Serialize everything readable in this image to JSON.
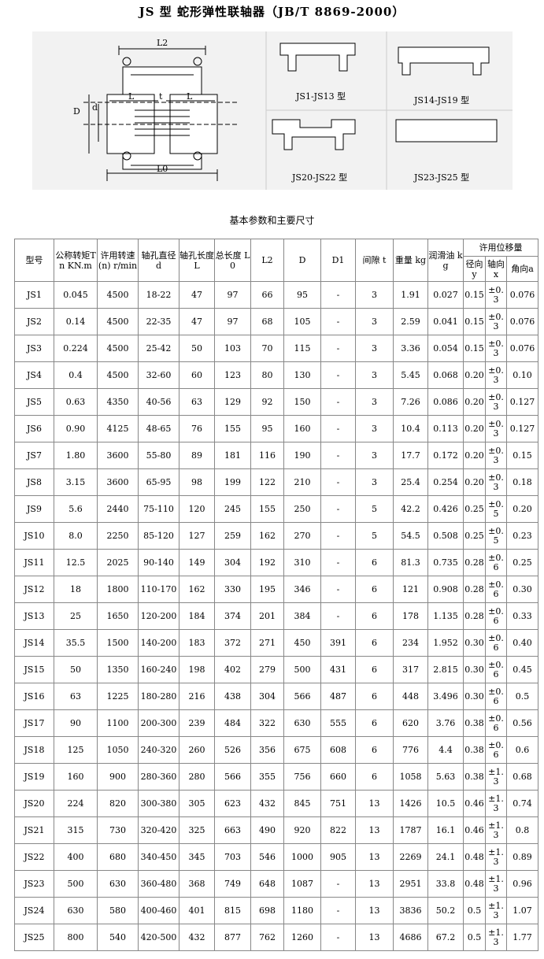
{
  "header": {
    "title": "JS 型 蛇形弹性联轴器（JB/T 8869-2000）"
  },
  "diagram": {
    "labels": [
      "L2",
      "D",
      "d",
      "L",
      "t",
      "L",
      "L0"
    ],
    "variants": [
      "JS1-JS13 型",
      "JS14-JS19 型",
      "JS20-JS22 型",
      "JS23-JS25 型"
    ]
  },
  "table": {
    "caption": "基本参数和主要尺寸",
    "columns": [
      "型号",
      "公称转矩Tn KN.m",
      "许用转速(n) r/min",
      "轴孔直径 d",
      "轴孔长度 L",
      "总长度 L0",
      "L2",
      "D",
      "D1",
      "间隙 t",
      "重量 kg",
      "润滑油 kg"
    ],
    "group_header": "许用位移量",
    "sub_columns": [
      "径向 y",
      "轴向x",
      "角向a"
    ],
    "rows": [
      [
        "JS1",
        "0.045",
        "4500",
        "18-22",
        "47",
        "97",
        "66",
        "95",
        "-",
        "3",
        "1.91",
        "0.027",
        "0.15",
        "±0.3",
        "0.076"
      ],
      [
        "JS2",
        "0.14",
        "4500",
        "22-35",
        "47",
        "97",
        "68",
        "105",
        "-",
        "3",
        "2.59",
        "0.041",
        "0.15",
        "±0.3",
        "0.076"
      ],
      [
        "JS3",
        "0.224",
        "4500",
        "25-42",
        "50",
        "103",
        "70",
        "115",
        "-",
        "3",
        "3.36",
        "0.054",
        "0.15",
        "±0.3",
        "0.076"
      ],
      [
        "JS4",
        "0.4",
        "4500",
        "32-60",
        "60",
        "123",
        "80",
        "130",
        "-",
        "3",
        "5.45",
        "0.068",
        "0.20",
        "±0.3",
        "0.10"
      ],
      [
        "JS5",
        "0.63",
        "4350",
        "40-56",
        "63",
        "129",
        "92",
        "150",
        "-",
        "3",
        "7.26",
        "0.086",
        "0.20",
        "±0.3",
        "0.127"
      ],
      [
        "JS6",
        "0.90",
        "4125",
        "48-65",
        "76",
        "155",
        "95",
        "160",
        "-",
        "3",
        "10.4",
        "0.113",
        "0.20",
        "±0.3",
        "0.127"
      ],
      [
        "JS7",
        "1.80",
        "3600",
        "55-80",
        "89",
        "181",
        "116",
        "190",
        "-",
        "3",
        "17.7",
        "0.172",
        "0.20",
        "±0.3",
        "0.15"
      ],
      [
        "JS8",
        "3.15",
        "3600",
        "65-95",
        "98",
        "199",
        "122",
        "210",
        "-",
        "3",
        "25.4",
        "0.254",
        "0.20",
        "±0.3",
        "0.18"
      ],
      [
        "JS9",
        "5.6",
        "2440",
        "75-110",
        "120",
        "245",
        "155",
        "250",
        "-",
        "5",
        "42.2",
        "0.426",
        "0.25",
        "±0.5",
        "0.20"
      ],
      [
        "JS10",
        "8.0",
        "2250",
        "85-120",
        "127",
        "259",
        "162",
        "270",
        "-",
        "5",
        "54.5",
        "0.508",
        "0.25",
        "±0.5",
        "0.23"
      ],
      [
        "JS11",
        "12.5",
        "2025",
        "90-140",
        "149",
        "304",
        "192",
        "310",
        "-",
        "6",
        "81.3",
        "0.735",
        "0.28",
        "±0.6",
        "0.25"
      ],
      [
        "JS12",
        "18",
        "1800",
        "110-170",
        "162",
        "330",
        "195",
        "346",
        "-",
        "6",
        "121",
        "0.908",
        "0.28",
        "±0.6",
        "0.30"
      ],
      [
        "JS13",
        "25",
        "1650",
        "120-200",
        "184",
        "374",
        "201",
        "384",
        "-",
        "6",
        "178",
        "1.135",
        "0.28",
        "±0.6",
        "0.33"
      ],
      [
        "JS14",
        "35.5",
        "1500",
        "140-200",
        "183",
        "372",
        "271",
        "450",
        "391",
        "6",
        "234",
        "1.952",
        "0.30",
        "±0.6",
        "0.40"
      ],
      [
        "JS15",
        "50",
        "1350",
        "160-240",
        "198",
        "402",
        "279",
        "500",
        "431",
        "6",
        "317",
        "2.815",
        "0.30",
        "±0.6",
        "0.45"
      ],
      [
        "JS16",
        "63",
        "1225",
        "180-280",
        "216",
        "438",
        "304",
        "566",
        "487",
        "6",
        "448",
        "3.496",
        "0.30",
        "±0.6",
        "0.5"
      ],
      [
        "JS17",
        "90",
        "1100",
        "200-300",
        "239",
        "484",
        "322",
        "630",
        "555",
        "6",
        "620",
        "3.76",
        "0.38",
        "±0.6",
        "0.56"
      ],
      [
        "JS18",
        "125",
        "1050",
        "240-320",
        "260",
        "526",
        "356",
        "675",
        "608",
        "6",
        "776",
        "4.4",
        "0.38",
        "±0.6",
        "0.6"
      ],
      [
        "JS19",
        "160",
        "900",
        "280-360",
        "280",
        "566",
        "355",
        "756",
        "660",
        "6",
        "1058",
        "5.63",
        "0.38",
        "±1.3",
        "0.68"
      ],
      [
        "JS20",
        "224",
        "820",
        "300-380",
        "305",
        "623",
        "432",
        "845",
        "751",
        "13",
        "1426",
        "10.5",
        "0.46",
        "±1.3",
        "0.74"
      ],
      [
        "JS21",
        "315",
        "730",
        "320-420",
        "325",
        "663",
        "490",
        "920",
        "822",
        "13",
        "1787",
        "16.1",
        "0.46",
        "±1.3",
        "0.8"
      ],
      [
        "JS22",
        "400",
        "680",
        "340-450",
        "345",
        "703",
        "546",
        "1000",
        "905",
        "13",
        "2269",
        "24.1",
        "0.48",
        "±1.3",
        "0.89"
      ],
      [
        "JS23",
        "500",
        "630",
        "360-480",
        "368",
        "749",
        "648",
        "1087",
        "-",
        "13",
        "2951",
        "33.8",
        "0.48",
        "±1.3",
        "0.96"
      ],
      [
        "JS24",
        "630",
        "580",
        "400-460",
        "401",
        "815",
        "698",
        "1180",
        "-",
        "13",
        "3836",
        "50.2",
        "0.5",
        "±1.3",
        "1.07"
      ],
      [
        "JS25",
        "800",
        "540",
        "420-500",
        "432",
        "877",
        "762",
        "1260",
        "-",
        "13",
        "4686",
        "67.2",
        "0.5",
        "±1.3",
        "1.77"
      ]
    ]
  }
}
